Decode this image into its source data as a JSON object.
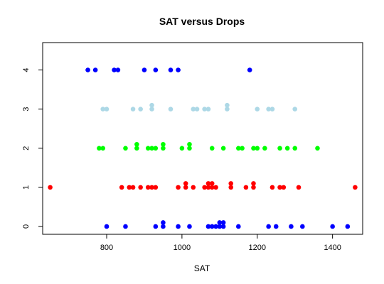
{
  "chart_data": {
    "type": "scatter",
    "title": "SAT versus Drops",
    "xlabel": "SAT",
    "ylabel": "",
    "xlim": [
      630,
      1480
    ],
    "ylim": [
      -0.2,
      4.7
    ],
    "xticks": [
      800,
      1000,
      1200,
      1400
    ],
    "yticks": [
      0,
      1,
      2,
      3,
      4
    ],
    "grid": false,
    "series": [
      {
        "color": "#0000ff",
        "points": [
          [
            800,
            0
          ],
          [
            850,
            0
          ],
          [
            930,
            0
          ],
          [
            950,
            0
          ],
          [
            950,
            0.1
          ],
          [
            990,
            0
          ],
          [
            1020,
            0
          ],
          [
            1070,
            0
          ],
          [
            1080,
            0
          ],
          [
            1090,
            0
          ],
          [
            1100,
            0
          ],
          [
            1100,
            0.1
          ],
          [
            1110,
            0
          ],
          [
            1110,
            0.1
          ],
          [
            1150,
            0
          ],
          [
            1230,
            0
          ],
          [
            1250,
            0
          ],
          [
            1290,
            0
          ],
          [
            1320,
            0
          ],
          [
            1400,
            0
          ],
          [
            1440,
            0
          ]
        ]
      },
      {
        "color": "#ff0000",
        "points": [
          [
            650,
            1
          ],
          [
            840,
            1
          ],
          [
            860,
            1
          ],
          [
            870,
            1
          ],
          [
            890,
            1
          ],
          [
            910,
            1
          ],
          [
            920,
            1
          ],
          [
            930,
            1
          ],
          [
            990,
            1
          ],
          [
            1010,
            1
          ],
          [
            1010,
            1.1
          ],
          [
            1030,
            1
          ],
          [
            1060,
            1
          ],
          [
            1070,
            1
          ],
          [
            1070,
            1.1
          ],
          [
            1080,
            1
          ],
          [
            1080,
            1.1
          ],
          [
            1090,
            1
          ],
          [
            1130,
            1
          ],
          [
            1130,
            1.1
          ],
          [
            1170,
            1
          ],
          [
            1190,
            1
          ],
          [
            1190,
            1.1
          ],
          [
            1240,
            1
          ],
          [
            1260,
            1
          ],
          [
            1270,
            1
          ],
          [
            1310,
            1
          ],
          [
            1460,
            1
          ]
        ]
      },
      {
        "color": "#00ff00",
        "points": [
          [
            780,
            2
          ],
          [
            790,
            2
          ],
          [
            850,
            2
          ],
          [
            880,
            2
          ],
          [
            880,
            2.1
          ],
          [
            910,
            2
          ],
          [
            920,
            2
          ],
          [
            930,
            2
          ],
          [
            950,
            2
          ],
          [
            950,
            2.1
          ],
          [
            1000,
            2
          ],
          [
            1020,
            2
          ],
          [
            1020,
            2.1
          ],
          [
            1080,
            2
          ],
          [
            1110,
            2
          ],
          [
            1150,
            2
          ],
          [
            1160,
            2
          ],
          [
            1190,
            2
          ],
          [
            1200,
            2
          ],
          [
            1220,
            2
          ],
          [
            1260,
            2
          ],
          [
            1280,
            2
          ],
          [
            1300,
            2
          ],
          [
            1360,
            2
          ]
        ]
      },
      {
        "color": "#add8e6",
        "points": [
          [
            790,
            3
          ],
          [
            800,
            3
          ],
          [
            870,
            3
          ],
          [
            890,
            3
          ],
          [
            920,
            3
          ],
          [
            920,
            3.1
          ],
          [
            970,
            3
          ],
          [
            1030,
            3
          ],
          [
            1040,
            3
          ],
          [
            1060,
            3
          ],
          [
            1070,
            3
          ],
          [
            1120,
            3
          ],
          [
            1120,
            3.1
          ],
          [
            1200,
            3
          ],
          [
            1230,
            3
          ],
          [
            1240,
            3
          ],
          [
            1300,
            3
          ]
        ]
      },
      {
        "color": "#0000ff",
        "points": [
          [
            750,
            4
          ],
          [
            770,
            4
          ],
          [
            820,
            4
          ],
          [
            830,
            4
          ],
          [
            900,
            4
          ],
          [
            930,
            4
          ],
          [
            970,
            4
          ],
          [
            990,
            4
          ],
          [
            1180,
            4
          ]
        ]
      }
    ]
  }
}
